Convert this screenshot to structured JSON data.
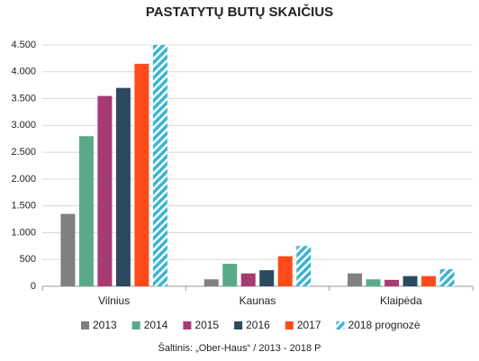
{
  "chart_data": {
    "type": "bar",
    "title": "PASTATYTŲ BUTŲ SKAIČIUS",
    "source": "Šaltinis: „Ober-Haus“ / 2013 - 2018 P",
    "categories": [
      "Vilnius",
      "Kaunas",
      "Klaipėda"
    ],
    "series": [
      {
        "name": "2013",
        "color": "#808080",
        "values": [
          1350,
          130,
          240
        ]
      },
      {
        "name": "2014",
        "color": "#5aaa8a",
        "values": [
          2800,
          420,
          130
        ]
      },
      {
        "name": "2015",
        "color": "#a63a72",
        "values": [
          3550,
          240,
          120
        ]
      },
      {
        "name": "2016",
        "color": "#2b4a5e",
        "values": [
          3700,
          300,
          190
        ]
      },
      {
        "name": "2017",
        "color": "#ff4a1a",
        "values": [
          4150,
          560,
          190
        ]
      },
      {
        "name": "2018 prognozė",
        "color": "#3ab5d0",
        "pattern": "hatch",
        "values": [
          4500,
          750,
          320
        ]
      }
    ],
    "ylim": [
      0,
      4500
    ],
    "yticks": [
      0,
      500,
      {
        "value": 1000,
        "label": "1.000"
      },
      {
        "value": 1500,
        "label": "1.500"
      },
      {
        "value": 2000,
        "label": "2.000"
      },
      {
        "value": 2500,
        "label": "2.500"
      },
      {
        "value": 3000,
        "label": "3.000"
      },
      {
        "value": 3500,
        "label": "3.500"
      },
      {
        "value": 4000,
        "label": "4.000"
      },
      {
        "value": 4500,
        "label": "4.500"
      }
    ],
    "grid": true
  }
}
